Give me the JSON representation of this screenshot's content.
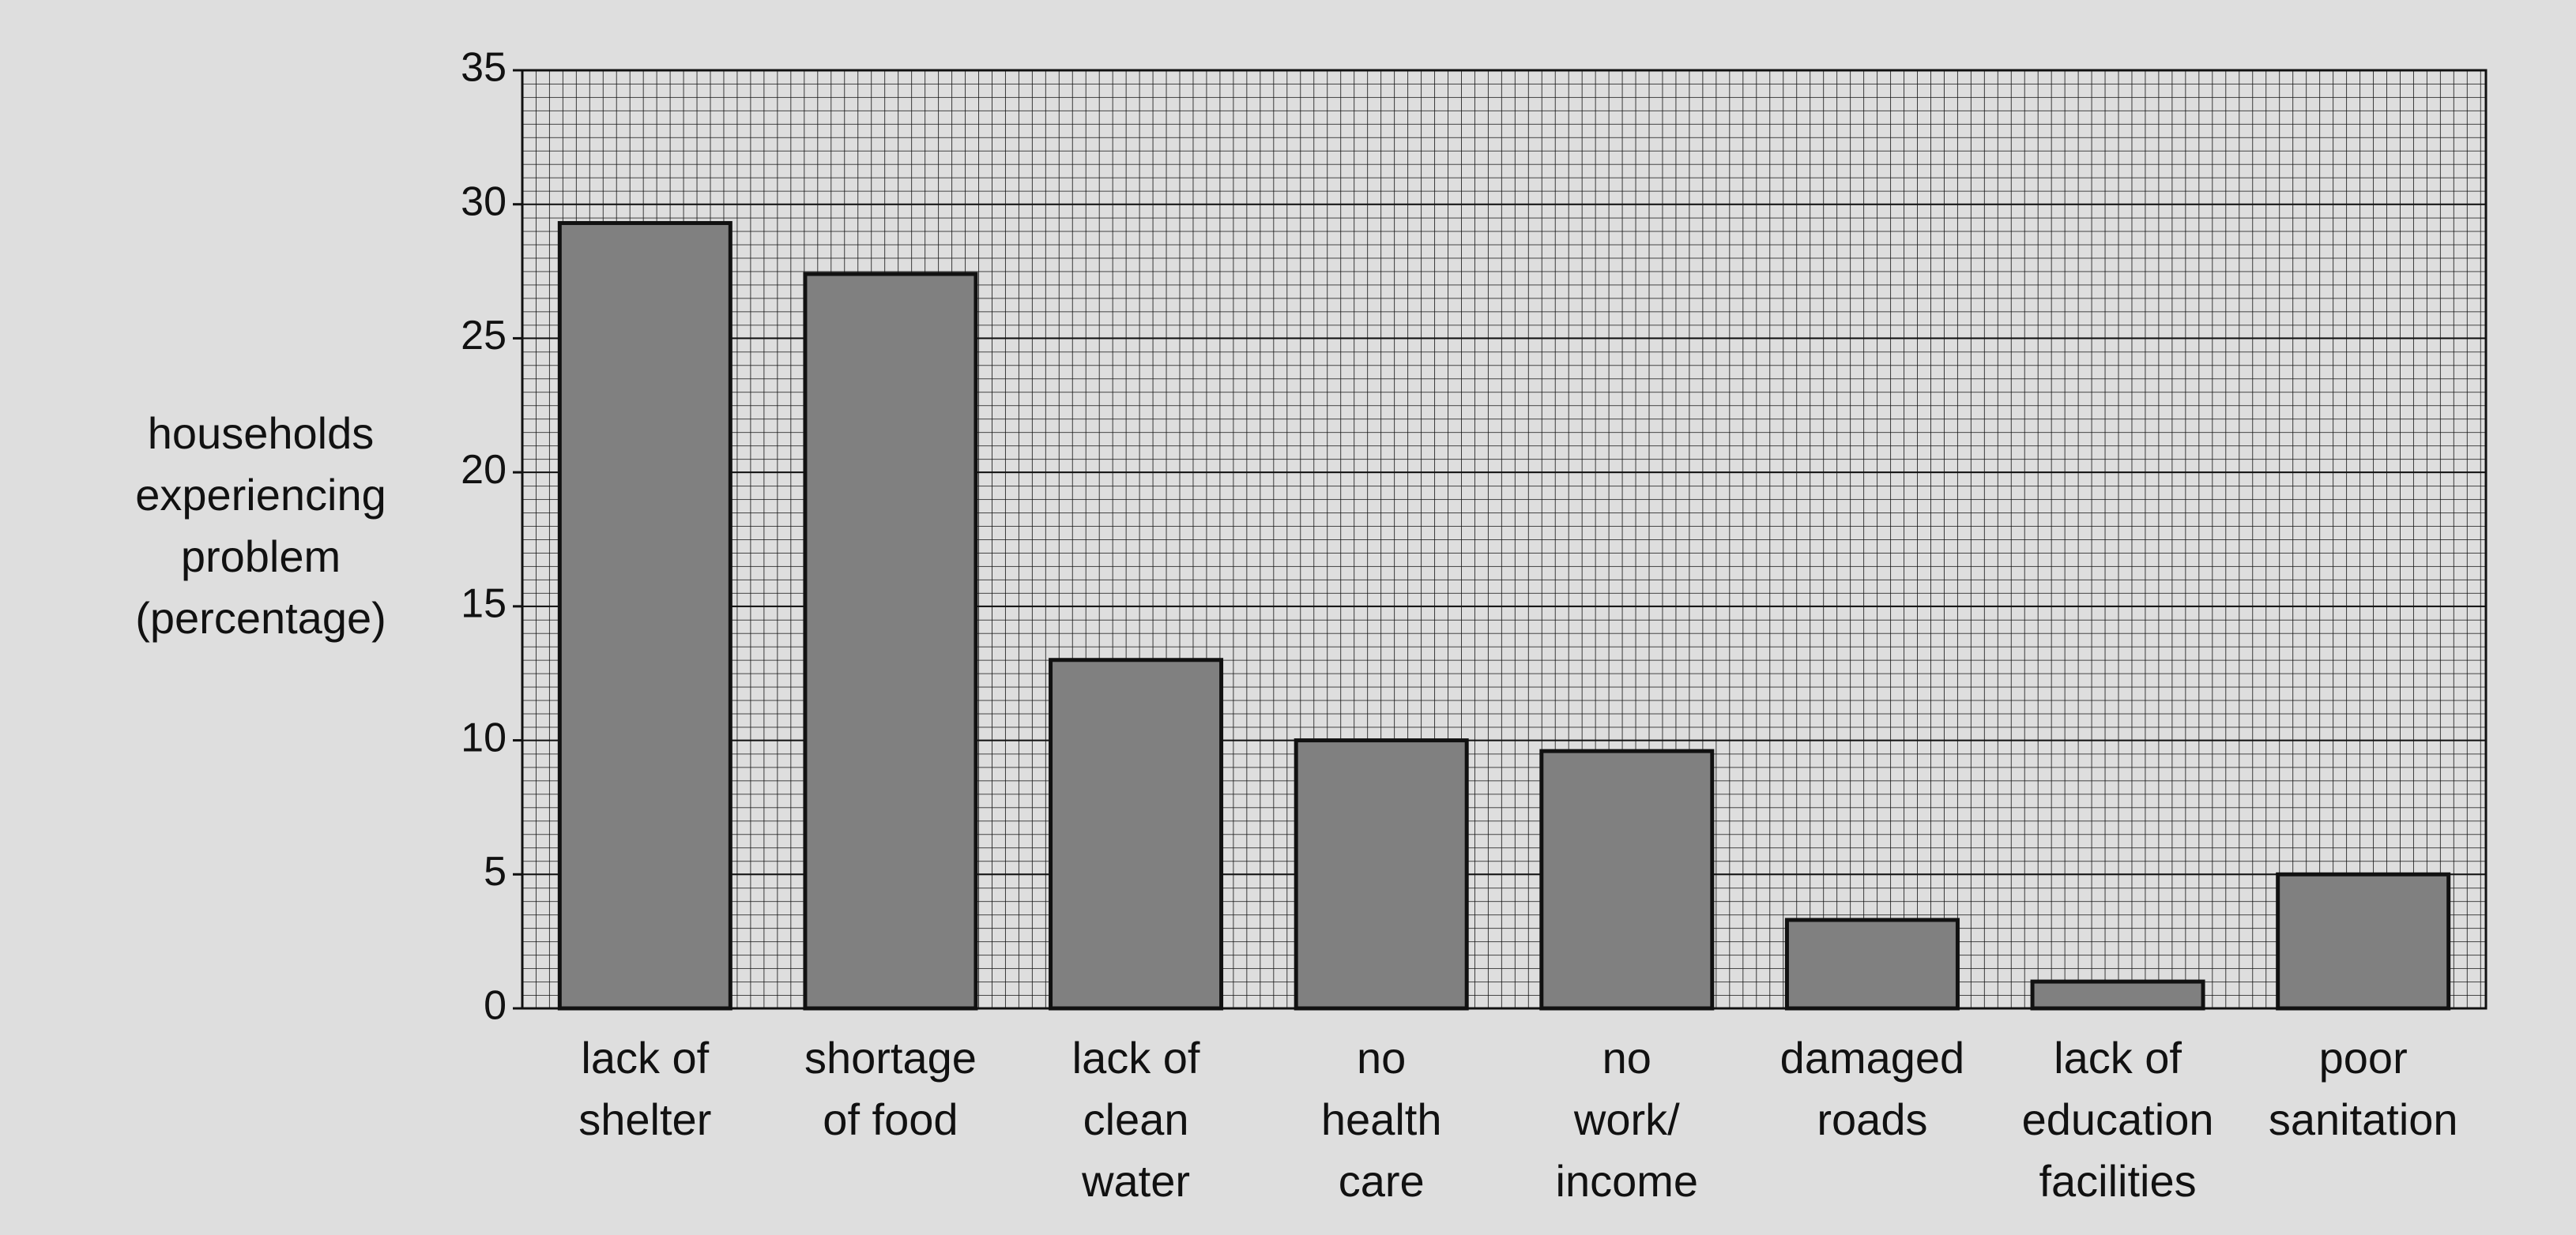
{
  "chart_data": {
    "type": "bar",
    "ylabel": "households\nexperiencing\nproblem\n(percentage)",
    "categories": [
      "lack of\nshelter",
      "shortage\nof food",
      "lack of\nclean\nwater",
      "no\nhealth\ncare",
      "no\nwork/\nincome",
      "damaged\nroads",
      "lack of\neducation\nfacilities",
      "poor\nsanitation"
    ],
    "values": [
      29.3,
      27.4,
      13,
      10,
      9.6,
      3.3,
      1,
      5
    ],
    "color": "#808080",
    "ylim": [
      0,
      35
    ],
    "yticks": [
      0,
      5,
      10,
      15,
      20,
      25,
      30,
      35
    ],
    "grid": true
  }
}
